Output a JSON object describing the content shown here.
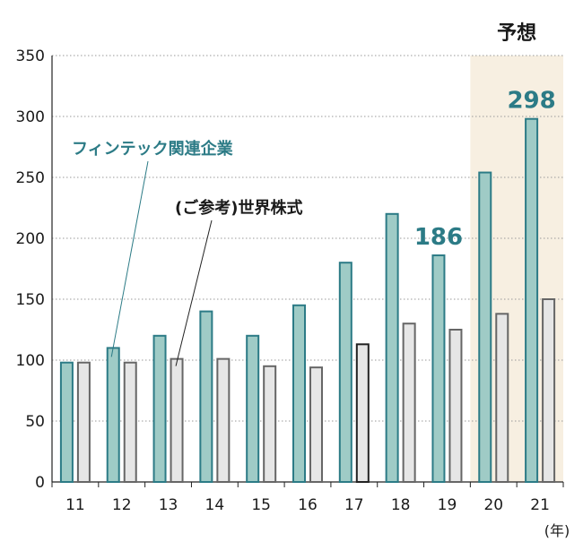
{
  "chart_data": {
    "type": "bar",
    "categories": [
      "11",
      "12",
      "13",
      "14",
      "15",
      "16",
      "17",
      "18",
      "19",
      "20",
      "21"
    ],
    "series": [
      {
        "name": "フィンテック関連企業",
        "values": [
          98,
          110,
          120,
          140,
          120,
          145,
          180,
          220,
          186,
          254,
          298
        ],
        "color": "#9fcbc6",
        "stroke": "#2c7b86"
      },
      {
        "name": "(ご参考)世界株式",
        "values": [
          98,
          98,
          101,
          101,
          95,
          94,
          113,
          130,
          125,
          138,
          150
        ],
        "color": "#e6e6e6",
        "stroke": "#666666"
      }
    ],
    "ylim": [
      0,
      350
    ],
    "yticks": [
      "0",
      "50",
      "100",
      "150",
      "200",
      "250",
      "300",
      "350"
    ],
    "grid": true,
    "xunit": "(年)",
    "forecast": {
      "label": "予想",
      "categories": [
        "20",
        "21"
      ],
      "color": "#f7efe1"
    },
    "data_labels": [
      {
        "series": 0,
        "category": "19",
        "text": "186"
      },
      {
        "series": 0,
        "category": "21",
        "text": "298"
      }
    ],
    "annotations": [
      {
        "text": "フィンテック関連企業",
        "series": 0,
        "category": "12"
      },
      {
        "text": "(ご参考)世界株式",
        "series": 1,
        "category": "13"
      }
    ]
  }
}
